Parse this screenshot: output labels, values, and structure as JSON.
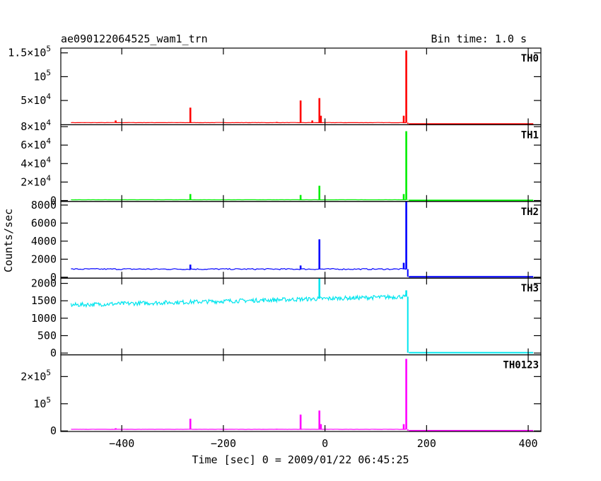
{
  "chart_data": {
    "type": "line",
    "title": "ae090122064525_wam1_trn",
    "bin_time": "Bin time: 1.0 s",
    "xlabel": "Time [sec] 0 = 2009/01/22 06:45:25",
    "ylabel": "Counts/sec",
    "xlim": [
      -520,
      425
    ],
    "x_ticks": [
      -400,
      -200,
      0,
      200,
      400
    ],
    "x_tick_labels": [
      "−400",
      "−200",
      "0",
      "200",
      "400"
    ],
    "panels": [
      {
        "name": "TH0",
        "color": "#ff0000",
        "ylim": [
          -1000,
          160000
        ],
        "y_ticks": [
          50000,
          100000,
          150000
        ],
        "y_tick_labels": [
          {
            "base": "5×10",
            "exp": "4"
          },
          {
            "base": "10",
            "exp": "5"
          },
          {
            "base": "1.5×10",
            "exp": "5"
          }
        ],
        "baseline": 3500,
        "segments": [
          {
            "x": [
              -500,
              160
            ],
            "y": 3500
          },
          {
            "x": [
              165,
              410
            ],
            "y": 800
          }
        ],
        "spikes": [
          {
            "x": -412,
            "y": 8000
          },
          {
            "x": -265,
            "y": 35000
          },
          {
            "x": -95,
            "y": 5000
          },
          {
            "x": -48,
            "y": 50000
          },
          {
            "x": -25,
            "y": 8000
          },
          {
            "x": -11,
            "y": 55000
          },
          {
            "x": -8,
            "y": 18000
          },
          {
            "x": 155,
            "y": 18000
          },
          {
            "x": 160,
            "y": 155000
          }
        ]
      },
      {
        "name": "TH1",
        "color": "#00ee00",
        "ylim": [
          -1000,
          82000
        ],
        "y_ticks": [
          0,
          20000,
          40000,
          60000,
          80000
        ],
        "y_tick_labels": [
          {
            "base": "0",
            "exp": ""
          },
          {
            "base": "2×10",
            "exp": "4"
          },
          {
            "base": "4×10",
            "exp": "4"
          },
          {
            "base": "6×10",
            "exp": "4"
          },
          {
            "base": "8×10",
            "exp": "4"
          }
        ],
        "baseline": 800,
        "segments": [
          {
            "x": [
              -500,
              160
            ],
            "y": 800
          },
          {
            "x": [
              165,
              410
            ],
            "y": 200
          }
        ],
        "spikes": [
          {
            "x": -265,
            "y": 7000
          },
          {
            "x": -48,
            "y": 6000
          },
          {
            "x": -11,
            "y": 16000
          },
          {
            "x": 155,
            "y": 7000
          },
          {
            "x": 160,
            "y": 75000
          }
        ]
      },
      {
        "name": "TH2",
        "color": "#0000ff",
        "ylim": [
          -100,
          8400
        ],
        "y_ticks": [
          0,
          2000,
          4000,
          6000,
          8000
        ],
        "y_tick_labels": [
          {
            "base": "0",
            "exp": ""
          },
          {
            "base": "2000",
            "exp": ""
          },
          {
            "base": "4000",
            "exp": ""
          },
          {
            "base": "6000",
            "exp": ""
          },
          {
            "base": "8000",
            "exp": ""
          }
        ],
        "baseline": 900,
        "segments": [
          {
            "x": [
              -500,
              160
            ],
            "y": 900
          },
          {
            "x": [
              165,
              410
            ],
            "y": 50
          }
        ],
        "spikes": [
          {
            "x": -265,
            "y": 1400
          },
          {
            "x": -48,
            "y": 1300
          },
          {
            "x": -11,
            "y": 4200
          },
          {
            "x": 155,
            "y": 1600
          },
          {
            "x": 160,
            "y": 8400
          }
        ]
      },
      {
        "name": "TH3",
        "color": "#00e5ee",
        "ylim": [
          -50,
          2150
        ],
        "y_ticks": [
          0,
          500,
          1000,
          1500,
          2000
        ],
        "y_tick_labels": [
          {
            "base": "0",
            "exp": ""
          },
          {
            "base": "500",
            "exp": ""
          },
          {
            "base": "1000",
            "exp": ""
          },
          {
            "base": "1500",
            "exp": ""
          },
          {
            "base": "2000",
            "exp": ""
          }
        ],
        "trend": {
          "x": [
            -500,
            160
          ],
          "y": [
            1380,
            1620
          ],
          "noise": 60
        },
        "segments": [
          {
            "x": [
              165,
              410
            ],
            "y": 10
          }
        ],
        "spikes": [
          {
            "x": -11,
            "y": 2150
          },
          {
            "x": 160,
            "y": 1800
          }
        ]
      },
      {
        "name": "TH0123",
        "color": "#ff00ff",
        "ylim": [
          -2000,
          280000
        ],
        "y_ticks": [
          0,
          100000,
          200000
        ],
        "y_tick_labels": [
          {
            "base": "0",
            "exp": ""
          },
          {
            "base": "10",
            "exp": "5"
          },
          {
            "base": "2×10",
            "exp": "5"
          }
        ],
        "baseline": 6000,
        "segments": [
          {
            "x": [
              -500,
              160
            ],
            "y": 6000
          },
          {
            "x": [
              165,
              410
            ],
            "y": 1000
          }
        ],
        "spikes": [
          {
            "x": -412,
            "y": 10000
          },
          {
            "x": -265,
            "y": 45000
          },
          {
            "x": -95,
            "y": 8000
          },
          {
            "x": -48,
            "y": 60000
          },
          {
            "x": -11,
            "y": 75000
          },
          {
            "x": -8,
            "y": 25000
          },
          {
            "x": 155,
            "y": 25000
          },
          {
            "x": 160,
            "y": 265000
          }
        ]
      }
    ]
  }
}
